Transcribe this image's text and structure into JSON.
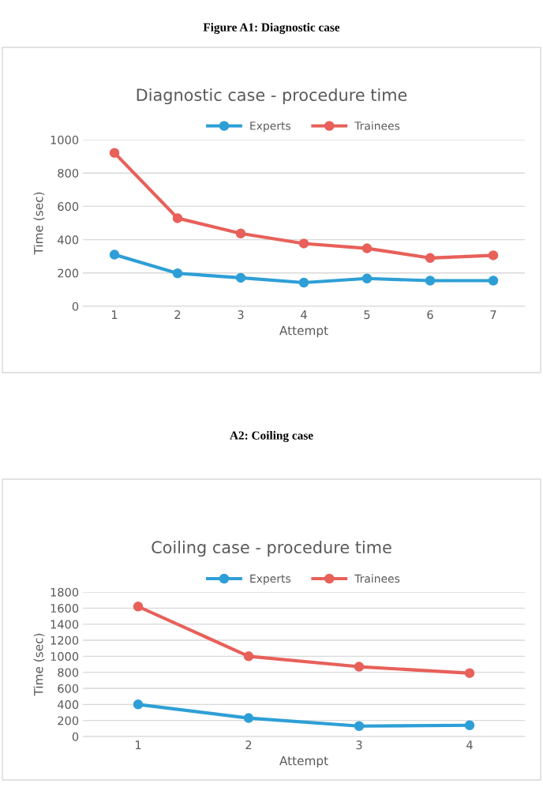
{
  "chart_data": [
    {
      "type": "line",
      "annotations": [
        "Figure A1: Diagnostic case"
      ],
      "title": "Diagnostic case - procedure time",
      "xlabel": "Attempt",
      "ylabel": "Time (sec)",
      "categories": [
        "1",
        "2",
        "3",
        "4",
        "5",
        "6",
        "7"
      ],
      "series": [
        {
          "name": "Experts",
          "color": "#2e9fd6",
          "values": [
            310,
            198,
            171,
            142,
            167,
            154,
            154
          ]
        },
        {
          "name": "Trainees",
          "color": "#e8605a",
          "values": [
            921,
            529,
            437,
            377,
            348,
            290,
            306
          ]
        }
      ],
      "ylim": [
        0,
        1000
      ],
      "yticks": [
        0,
        200,
        400,
        600,
        800,
        1000
      ],
      "grid": "y",
      "legend": "top",
      "marker": "circle",
      "line_style": "solid"
    },
    {
      "type": "line",
      "annotations": [
        "A2: Coiling case"
      ],
      "title": "Coiling case - procedure time",
      "xlabel": "Attempt",
      "ylabel": "Time (sec)",
      "categories": [
        "1",
        "2",
        "3",
        "4"
      ],
      "series": [
        {
          "name": "Experts",
          "color": "#2e9fd6",
          "values": [
            400,
            230,
            130,
            140
          ]
        },
        {
          "name": "Trainees",
          "color": "#e8605a",
          "values": [
            1620,
            1000,
            870,
            790
          ]
        }
      ],
      "ylim": [
        0,
        1800
      ],
      "yticks": [
        0,
        200,
        400,
        600,
        800,
        1000,
        1200,
        1400,
        1600,
        1800
      ],
      "grid": "y",
      "legend": "top",
      "marker": "circle",
      "line_style": "solid"
    }
  ]
}
